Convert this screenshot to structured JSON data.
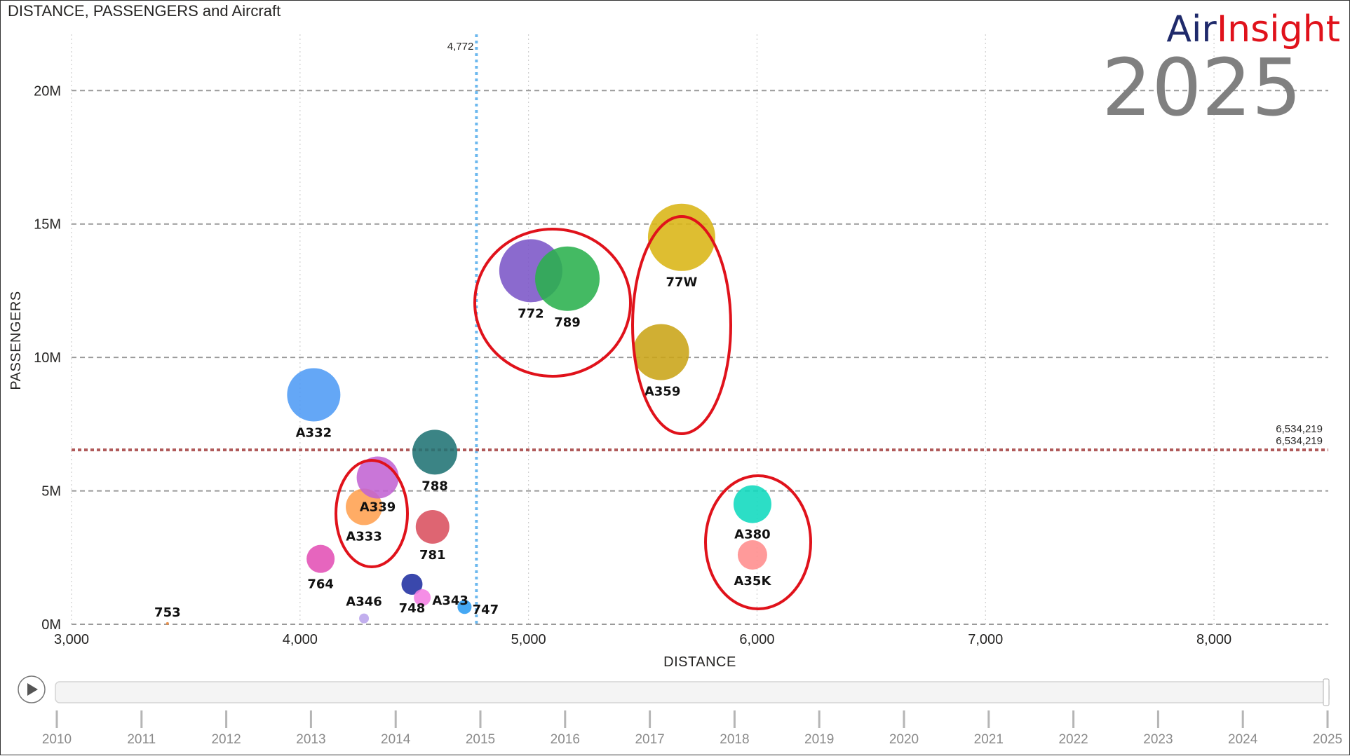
{
  "chart_data": {
    "type": "scatter",
    "title": "DISTANCE, PASSENGERS and Aircraft",
    "xlabel": "DISTANCE",
    "ylabel": "PASSENGERS",
    "xlim": [
      3000,
      8500
    ],
    "ylim": [
      0,
      23000000
    ],
    "grid": true,
    "xticks": [
      {
        "value": 3000,
        "label": "3,000"
      },
      {
        "value": 4000,
        "label": "4,000"
      },
      {
        "value": 5000,
        "label": "5,000"
      },
      {
        "value": 6000,
        "label": "6,000"
      },
      {
        "value": 7000,
        "label": "7,000"
      },
      {
        "value": 8000,
        "label": "8,000"
      }
    ],
    "yticks": [
      {
        "value": 0,
        "label": "0M"
      },
      {
        "value": 5000000,
        "label": "5M"
      },
      {
        "value": 10000000,
        "label": "10M"
      },
      {
        "value": 15000000,
        "label": "15M"
      },
      {
        "value": 20000000,
        "label": "20M"
      }
    ],
    "ref_lines": {
      "vertical": {
        "value": 4772,
        "label": "4,772",
        "color": "#6cb8ee"
      },
      "horizontal": {
        "value": 6534219,
        "label_a": "6,534,219",
        "label_b": "6,534,219",
        "color": "#b05a5a"
      }
    },
    "points": [
      {
        "label": "753",
        "x": 3420,
        "y": 30000,
        "size": 2,
        "color": "#e8883c"
      },
      {
        "label": "A332",
        "x": 4060,
        "y": 8600000,
        "size": 38,
        "color": "#4f9bf5"
      },
      {
        "label": "764",
        "x": 4090,
        "y": 2450000,
        "size": 20,
        "color": "#e250b5"
      },
      {
        "label": "A346",
        "x": 4280,
        "y": 220000,
        "size": 7,
        "color": "#b9a4ec"
      },
      {
        "label": "A333",
        "x": 4280,
        "y": 4400000,
        "size": 26,
        "color": "#ffa050"
      },
      {
        "label": "A339",
        "x": 4340,
        "y": 5500000,
        "size": 30,
        "color": "#c163d3"
      },
      {
        "label": "748",
        "x": 4490,
        "y": 1500000,
        "size": 15,
        "color": "#1f2fa0"
      },
      {
        "label": "A343",
        "x": 4535,
        "y": 1000000,
        "size": 12,
        "color": "#f47ee3"
      },
      {
        "label": "781",
        "x": 4580,
        "y": 3650000,
        "size": 24,
        "color": "#d9505e"
      },
      {
        "label": "788",
        "x": 4590,
        "y": 6450000,
        "size": 32,
        "color": "#207374"
      },
      {
        "label": "747",
        "x": 4720,
        "y": 650000,
        "size": 10,
        "color": "#2b9cf2"
      },
      {
        "label": "772",
        "x": 5010,
        "y": 13250000,
        "size": 45,
        "color": "#7b55c7"
      },
      {
        "label": "789",
        "x": 5170,
        "y": 12950000,
        "size": 46,
        "color": "#2ab14d"
      },
      {
        "label": "A359",
        "x": 5580,
        "y": 10200000,
        "size": 40,
        "color": "#c9a417"
      },
      {
        "label": "77W",
        "x": 5670,
        "y": 14500000,
        "size": 48,
        "color": "#d9b514"
      },
      {
        "label": "A380",
        "x": 5980,
        "y": 4500000,
        "size": 27,
        "color": "#0fd9be"
      },
      {
        "label": "A35K",
        "x": 5980,
        "y": 2600000,
        "size": 21,
        "color": "#ff8c8c"
      }
    ],
    "highlight_groups": [
      {
        "name": "772-789"
      },
      {
        "name": "77W-A359"
      },
      {
        "name": "A339-A333"
      },
      {
        "name": "A380-A35K"
      }
    ]
  },
  "brand": {
    "part1": "Air",
    "part2": "Insight",
    "color1": "#1f2a6b",
    "color2": "#e0121b"
  },
  "current_year": "2025",
  "timeline": {
    "years": [
      "2010",
      "2011",
      "2012",
      "2013",
      "2014",
      "2015",
      "2016",
      "2017",
      "2018",
      "2019",
      "2020",
      "2021",
      "2022",
      "2023",
      "2024",
      "2025"
    ],
    "current": "2025",
    "play_icon": "play-icon"
  }
}
